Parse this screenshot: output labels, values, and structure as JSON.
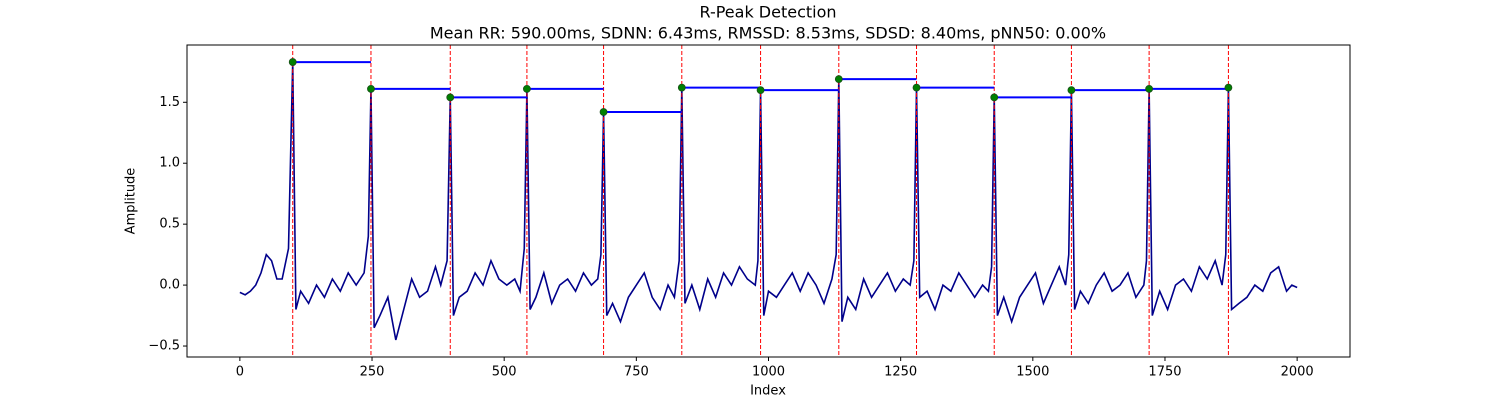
{
  "chart_data": {
    "type": "line",
    "title": "R-Peak Detection",
    "subtitle": "Mean RR: 590.00ms, SDNN: 6.43ms, RMSSD: 8.53ms, SDSD: 8.40ms, pNN50: 0.00%",
    "xlabel": "Index",
    "ylabel": "Amplitude",
    "color": "#00008b",
    "x": [
      0,
      10,
      20,
      30,
      40,
      50,
      60,
      70,
      80,
      92,
      100,
      106,
      115,
      130,
      145,
      160,
      175,
      190,
      205,
      220,
      235,
      243,
      248,
      254,
      265,
      280,
      295,
      310,
      325,
      340,
      355,
      370,
      380,
      392,
      398,
      404,
      415,
      430,
      445,
      460,
      475,
      490,
      505,
      520,
      530,
      538,
      543,
      549,
      560,
      575,
      590,
      605,
      620,
      635,
      650,
      665,
      677,
      683,
      688,
      694,
      705,
      720,
      735,
      750,
      765,
      780,
      795,
      810,
      822,
      831,
      836,
      842,
      855,
      870,
      885,
      900,
      915,
      930,
      945,
      960,
      975,
      980,
      985,
      991,
      1000,
      1015,
      1030,
      1045,
      1060,
      1075,
      1090,
      1105,
      1120,
      1128,
      1133,
      1139,
      1150,
      1165,
      1180,
      1195,
      1210,
      1225,
      1240,
      1255,
      1268,
      1275,
      1280,
      1286,
      1300,
      1315,
      1330,
      1345,
      1360,
      1375,
      1390,
      1405,
      1416,
      1422,
      1427,
      1433,
      1445,
      1460,
      1475,
      1490,
      1505,
      1520,
      1535,
      1550,
      1562,
      1568,
      1573,
      1579,
      1590,
      1605,
      1620,
      1635,
      1650,
      1665,
      1680,
      1695,
      1710,
      1715,
      1720,
      1726,
      1740,
      1755,
      1770,
      1785,
      1800,
      1815,
      1830,
      1845,
      1858,
      1865,
      1870,
      1876,
      1890,
      1905,
      1920,
      1935,
      1950,
      1965,
      1980,
      1990,
      2000
    ],
    "values": [
      -0.06,
      -0.08,
      -0.05,
      0.0,
      0.1,
      0.25,
      0.2,
      0.05,
      0.05,
      0.3,
      1.83,
      -0.2,
      -0.05,
      -0.15,
      0.0,
      -0.1,
      0.05,
      -0.05,
      0.1,
      0.0,
      0.1,
      0.4,
      1.61,
      -0.35,
      -0.25,
      -0.1,
      -0.45,
      -0.2,
      0.05,
      -0.1,
      -0.05,
      0.15,
      0.0,
      0.2,
      1.54,
      -0.25,
      -0.1,
      -0.05,
      0.1,
      0.0,
      0.2,
      0.05,
      0.0,
      0.05,
      -0.05,
      0.3,
      1.61,
      -0.2,
      -0.1,
      0.1,
      -0.15,
      0.0,
      0.05,
      -0.05,
      0.1,
      0.0,
      0.05,
      0.25,
      1.42,
      -0.25,
      -0.15,
      -0.3,
      -0.1,
      0.0,
      0.1,
      -0.1,
      -0.2,
      0.0,
      -0.1,
      0.2,
      1.62,
      -0.15,
      0.0,
      -0.2,
      0.05,
      -0.1,
      0.1,
      0.0,
      0.15,
      0.05,
      0.0,
      0.2,
      1.6,
      -0.25,
      -0.05,
      -0.1,
      0.0,
      0.1,
      -0.05,
      0.1,
      0.0,
      -0.15,
      0.05,
      0.25,
      1.69,
      -0.3,
      -0.1,
      -0.2,
      0.05,
      -0.1,
      0.0,
      0.1,
      -0.05,
      0.05,
      0.0,
      0.2,
      1.62,
      -0.1,
      -0.05,
      -0.2,
      0.0,
      -0.05,
      0.1,
      0.0,
      -0.1,
      0.0,
      -0.05,
      0.15,
      1.54,
      -0.25,
      -0.1,
      -0.3,
      -0.1,
      0.0,
      0.1,
      -0.15,
      0.0,
      0.15,
      0.0,
      0.25,
      1.6,
      -0.2,
      -0.05,
      -0.15,
      0.0,
      0.1,
      -0.05,
      0.0,
      0.1,
      -0.1,
      0.0,
      0.2,
      1.61,
      -0.25,
      -0.05,
      -0.2,
      0.0,
      0.05,
      -0.05,
      0.15,
      0.05,
      0.2,
      0.0,
      0.25,
      1.62,
      -0.2,
      -0.15,
      -0.1,
      0.0,
      -0.05,
      0.1,
      0.15,
      -0.05,
      0.0,
      -0.02
    ],
    "peaks": {
      "x": [
        100,
        248,
        398,
        543,
        688,
        836,
        985,
        1133,
        1280,
        1427,
        1573,
        1720,
        1870
      ],
      "values": [
        1.83,
        1.61,
        1.54,
        1.61,
        1.42,
        1.62,
        1.6,
        1.69,
        1.62,
        1.54,
        1.6,
        1.61,
        1.62
      ],
      "color": "#008000",
      "line_color": "#ff0000",
      "step_color": "#0000ff"
    },
    "xlim": [
      -100,
      2100
    ],
    "ylim": [
      -0.59,
      1.97
    ],
    "xticks": [
      0,
      250,
      500,
      750,
      1000,
      1250,
      1500,
      1750,
      2000
    ],
    "yticks": [
      {
        "value": -0.5,
        "label": "−0.5"
      },
      {
        "value": 0,
        "label": "0.0"
      },
      {
        "value": 0.5,
        "label": "0.5"
      },
      {
        "value": 1,
        "label": "1.0"
      },
      {
        "value": 1.5,
        "label": "1.5"
      }
    ]
  }
}
